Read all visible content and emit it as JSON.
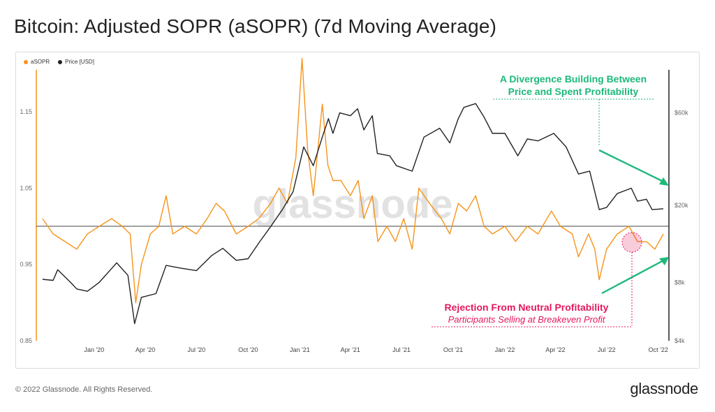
{
  "title": "Bitcoin: Adjusted SOPR (aSOPR) (7d Moving Average)",
  "watermark": "glassnode",
  "footer": "© 2022 Glassnode. All Rights Reserved.",
  "brand": "glassnode",
  "colors": {
    "asopr": "#f7931a",
    "price": "#222222",
    "green": "#1db97a",
    "red": "#e5185d"
  },
  "chart_data": {
    "type": "line",
    "title": "Bitcoin: Adjusted SOPR (aSOPR) (7d Moving Average)",
    "legend_position": "top-left",
    "legend": [
      "aSOPR",
      "Price [USD]"
    ],
    "x_ticks": [
      "Jan '20",
      "Apr '20",
      "Jul '20",
      "Oct '20",
      "Jan '21",
      "Apr '21",
      "Jul '21",
      "Oct '21",
      "Jan '22",
      "Apr '22",
      "Jul '22",
      "Oct '22"
    ],
    "y_left": {
      "ticks": [
        "0.85",
        "0.95",
        "1.05",
        "1.15"
      ],
      "range": [
        0.85,
        1.2
      ],
      "reference_line": 1.0
    },
    "y_right": {
      "scale": "log",
      "ticks": [
        "$4k",
        "$8k",
        "$20k",
        "$60k"
      ],
      "range": [
        4000,
        100000
      ]
    },
    "series": [
      {
        "name": "aSOPR",
        "axis": "left",
        "points": [
          [
            "2019-10-01",
            1.01
          ],
          [
            "2019-10-20",
            0.99
          ],
          [
            "2019-11-10",
            0.98
          ],
          [
            "2019-12-01",
            0.97
          ],
          [
            "2019-12-20",
            0.99
          ],
          [
            "2020-01-10",
            1.0
          ],
          [
            "2020-02-01",
            1.01
          ],
          [
            "2020-02-20",
            1.0
          ],
          [
            "2020-03-05",
            0.99
          ],
          [
            "2020-03-15",
            0.9
          ],
          [
            "2020-03-25",
            0.95
          ],
          [
            "2020-04-10",
            0.99
          ],
          [
            "2020-04-25",
            1.0
          ],
          [
            "2020-05-08",
            1.04
          ],
          [
            "2020-05-20",
            0.99
          ],
          [
            "2020-06-10",
            1.0
          ],
          [
            "2020-07-01",
            0.99
          ],
          [
            "2020-07-20",
            1.01
          ],
          [
            "2020-08-05",
            1.03
          ],
          [
            "2020-08-20",
            1.02
          ],
          [
            "2020-09-10",
            0.99
          ],
          [
            "2020-10-01",
            1.0
          ],
          [
            "2020-10-20",
            1.01
          ],
          [
            "2020-11-10",
            1.03
          ],
          [
            "2020-11-25",
            1.05
          ],
          [
            "2020-12-10",
            1.03
          ],
          [
            "2020-12-25",
            1.09
          ],
          [
            "2021-01-05",
            1.22
          ],
          [
            "2021-01-15",
            1.1
          ],
          [
            "2021-01-25",
            1.04
          ],
          [
            "2021-02-10",
            1.16
          ],
          [
            "2021-02-20",
            1.08
          ],
          [
            "2021-03-01",
            1.06
          ],
          [
            "2021-03-15",
            1.06
          ],
          [
            "2021-04-01",
            1.04
          ],
          [
            "2021-04-15",
            1.06
          ],
          [
            "2021-04-25",
            1.01
          ],
          [
            "2021-05-10",
            1.04
          ],
          [
            "2021-05-20",
            0.98
          ],
          [
            "2021-06-05",
            1.0
          ],
          [
            "2021-06-20",
            0.98
          ],
          [
            "2021-07-05",
            1.01
          ],
          [
            "2021-07-20",
            0.97
          ],
          [
            "2021-08-01",
            1.05
          ],
          [
            "2021-08-20",
            1.03
          ],
          [
            "2021-09-10",
            1.01
          ],
          [
            "2021-09-25",
            0.99
          ],
          [
            "2021-10-10",
            1.03
          ],
          [
            "2021-10-25",
            1.02
          ],
          [
            "2021-11-10",
            1.04
          ],
          [
            "2021-11-25",
            1.0
          ],
          [
            "2021-12-10",
            0.99
          ],
          [
            "2022-01-01",
            1.0
          ],
          [
            "2022-01-20",
            0.98
          ],
          [
            "2022-02-10",
            1.0
          ],
          [
            "2022-03-01",
            0.99
          ],
          [
            "2022-03-25",
            1.02
          ],
          [
            "2022-04-10",
            1.0
          ],
          [
            "2022-05-01",
            0.99
          ],
          [
            "2022-05-12",
            0.96
          ],
          [
            "2022-05-30",
            0.99
          ],
          [
            "2022-06-10",
            0.97
          ],
          [
            "2022-06-18",
            0.93
          ],
          [
            "2022-07-01",
            0.97
          ],
          [
            "2022-07-20",
            0.99
          ],
          [
            "2022-08-10",
            1.0
          ],
          [
            "2022-08-25",
            0.98
          ],
          [
            "2022-09-10",
            0.98
          ],
          [
            "2022-09-25",
            0.97
          ],
          [
            "2022-10-10",
            0.99
          ]
        ]
      },
      {
        "name": "Price [USD]",
        "axis": "right",
        "points": [
          [
            "2019-10-01",
            8300
          ],
          [
            "2019-10-20",
            8200
          ],
          [
            "2019-10-28",
            9300
          ],
          [
            "2019-11-20",
            8000
          ],
          [
            "2019-12-01",
            7400
          ],
          [
            "2019-12-20",
            7200
          ],
          [
            "2020-01-10",
            8000
          ],
          [
            "2020-02-10",
            10100
          ],
          [
            "2020-03-01",
            8700
          ],
          [
            "2020-03-13",
            4900
          ],
          [
            "2020-03-25",
            6700
          ],
          [
            "2020-04-20",
            7000
          ],
          [
            "2020-05-08",
            9800
          ],
          [
            "2020-06-01",
            9500
          ],
          [
            "2020-07-01",
            9200
          ],
          [
            "2020-07-28",
            11000
          ],
          [
            "2020-08-17",
            12000
          ],
          [
            "2020-09-10",
            10400
          ],
          [
            "2020-10-01",
            10600
          ],
          [
            "2020-10-21",
            12900
          ],
          [
            "2020-11-10",
            15500
          ],
          [
            "2020-12-01",
            19000
          ],
          [
            "2020-12-20",
            23500
          ],
          [
            "2021-01-08",
            40000
          ],
          [
            "2021-01-25",
            32000
          ],
          [
            "2021-02-10",
            45000
          ],
          [
            "2021-02-21",
            56000
          ],
          [
            "2021-03-01",
            47000
          ],
          [
            "2021-03-13",
            60000
          ],
          [
            "2021-04-01",
            58000
          ],
          [
            "2021-04-14",
            63000
          ],
          [
            "2021-04-25",
            49000
          ],
          [
            "2021-05-10",
            58000
          ],
          [
            "2021-05-19",
            37000
          ],
          [
            "2021-06-10",
            36000
          ],
          [
            "2021-06-22",
            32000
          ],
          [
            "2021-07-20",
            30000
          ],
          [
            "2021-08-10",
            45000
          ],
          [
            "2021-09-07",
            50000
          ],
          [
            "2021-09-25",
            42000
          ],
          [
            "2021-10-10",
            56000
          ],
          [
            "2021-10-20",
            64000
          ],
          [
            "2021-11-10",
            67000
          ],
          [
            "2021-11-25",
            57000
          ],
          [
            "2021-12-10",
            47000
          ],
          [
            "2022-01-01",
            47000
          ],
          [
            "2022-01-24",
            36000
          ],
          [
            "2022-02-10",
            44000
          ],
          [
            "2022-03-01",
            43000
          ],
          [
            "2022-03-29",
            47000
          ],
          [
            "2022-04-20",
            40000
          ],
          [
            "2022-05-12",
            29000
          ],
          [
            "2022-06-01",
            30000
          ],
          [
            "2022-06-18",
            19000
          ],
          [
            "2022-07-01",
            19500
          ],
          [
            "2022-07-20",
            23000
          ],
          [
            "2022-08-14",
            24500
          ],
          [
            "2022-08-25",
            21000
          ],
          [
            "2022-09-10",
            21500
          ],
          [
            "2022-09-20",
            19000
          ],
          [
            "2022-10-10",
            19200
          ]
        ]
      }
    ],
    "annotations": [
      {
        "text": [
          "A Divergence Building Between",
          "Price and Spent Profitability"
        ],
        "color": "#1db97a"
      },
      {
        "text": [
          "Rejection From Neutral Profitability",
          "Participants Selling at Breakeven Profit"
        ],
        "color": "#e5185d"
      }
    ]
  }
}
